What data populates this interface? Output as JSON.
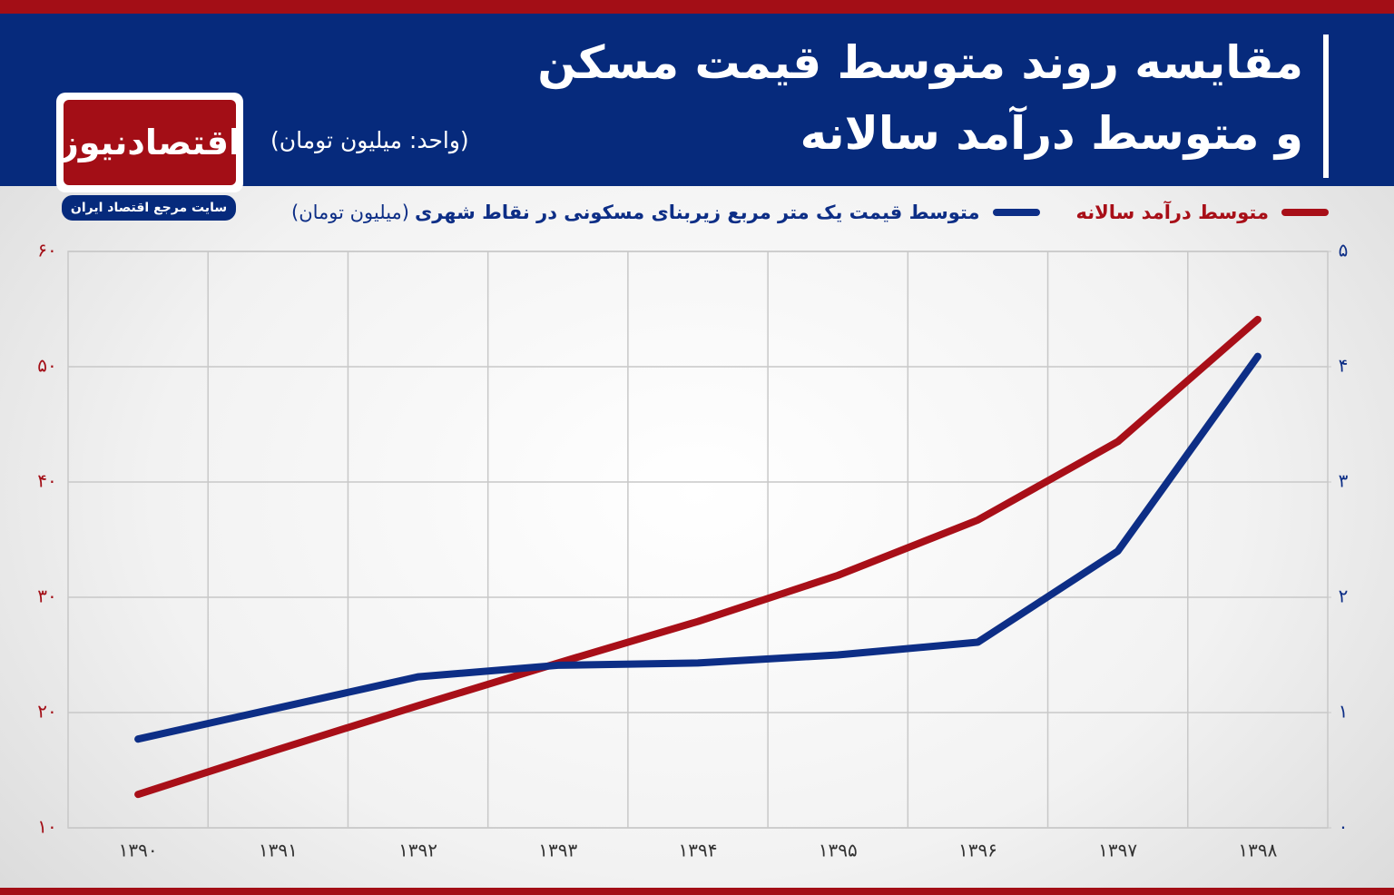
{
  "branding": {
    "logo": "اقتصادنیوز",
    "tagline": "سایت مرجع اقتصاد ایران"
  },
  "chart_data": {
    "type": "line",
    "title_lines": [
      "مقایسه روند متوسط قیمت مسکن",
      "و متوسط درآمد سالانه"
    ],
    "subtitle": "(واحد: میلیون تومان)",
    "legend_note": "(میلیون تومان)",
    "categories": [
      "۱۳۹۰",
      "۱۳۹۱",
      "۱۳۹۲",
      "۱۳۹۳",
      "۱۳۹۴",
      "۱۳۹۵",
      "۱۳۹۶",
      "۱۳۹۷",
      "۱۳۹۸"
    ],
    "series": [
      {
        "name": "متوسط درآمد سالانه",
        "color": "#a80f18",
        "values": [
          12.9,
          16.8,
          20.6,
          24.3,
          27.9,
          31.9,
          36.7,
          43.5,
          54.1
        ]
      },
      {
        "name": "متوسط قیمت یک متر مربع زیربنای مسکونی در نقاط شهری",
        "color": "#0d2e86",
        "axis": "y2",
        "values": [
          0.77,
          1.04,
          1.31,
          1.41,
          1.43,
          1.5,
          1.61,
          2.4,
          4.09
        ]
      }
    ],
    "ylim": [
      10,
      60
    ],
    "yticks": [
      {
        "value": 10,
        "label": "۱۰"
      },
      {
        "value": 20,
        "label": "۲۰"
      },
      {
        "value": 30,
        "label": "۳۰"
      },
      {
        "value": 40,
        "label": "۴۰"
      },
      {
        "value": 50,
        "label": "۵۰"
      },
      {
        "value": 60,
        "label": "۶۰"
      }
    ],
    "y2lim": [
      0,
      5
    ],
    "y2ticks": [
      {
        "value": 0,
        "label": "۰"
      },
      {
        "value": 1,
        "label": "۱"
      },
      {
        "value": 2,
        "label": "۲"
      },
      {
        "value": 3,
        "label": "۳"
      },
      {
        "value": 4,
        "label": "۴"
      },
      {
        "value": 5,
        "label": "۵"
      }
    ],
    "grid": true
  }
}
